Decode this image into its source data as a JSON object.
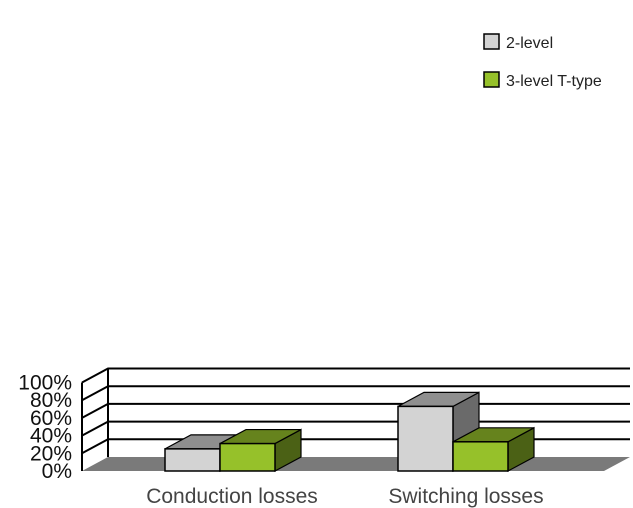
{
  "chart_data": {
    "type": "bar",
    "categories": [
      "Conduction losses",
      "Switching losses"
    ],
    "series": [
      {
        "name": "2-level",
        "values": [
          25,
          73
        ],
        "color": "#d3d3d3"
      },
      {
        "name": "3-level T-type",
        "values": [
          31,
          33
        ],
        "color": "#96c12a"
      }
    ],
    "yticks": [
      "0%",
      "20%",
      "40%",
      "60%",
      "80%",
      "100%"
    ],
    "ylim": [
      0,
      100
    ],
    "grid": true,
    "legend": "top-right",
    "three_d": true
  }
}
